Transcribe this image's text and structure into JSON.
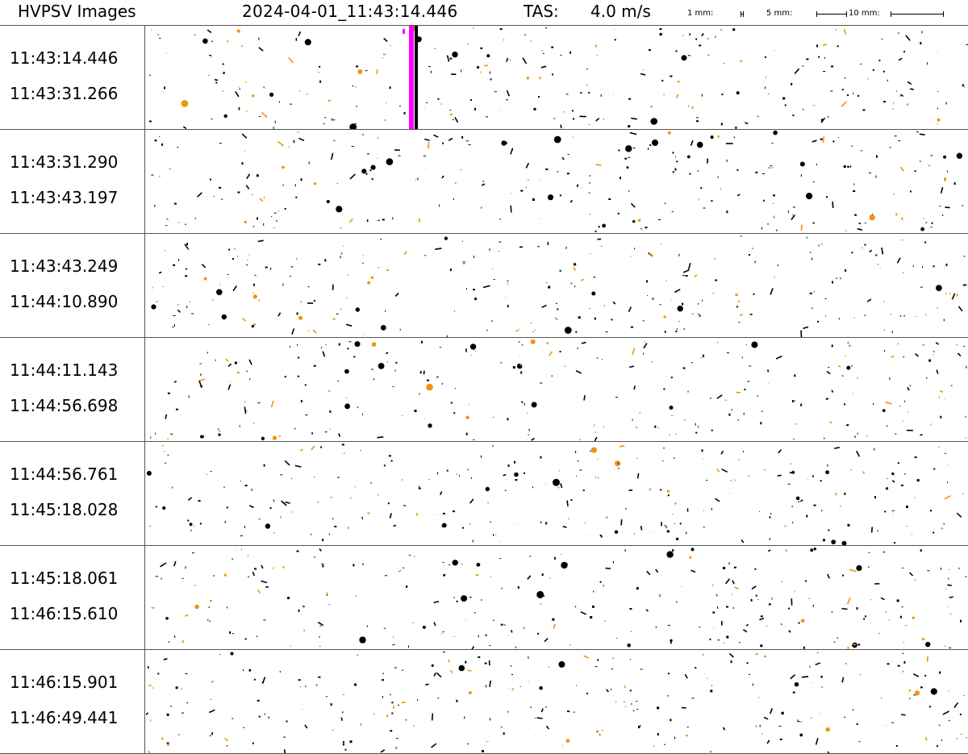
{
  "header": {
    "title": "HVPSV Images",
    "timestamp": "2024-04-01_11:43:14.446",
    "tas_label": "TAS:",
    "tas_value": "4.0 m/s",
    "scale": [
      {
        "label": "1 mm:"
      },
      {
        "label": "5 mm:"
      },
      {
        "label": "10 mm:"
      }
    ]
  },
  "strips": [
    {
      "start": "11:43:14.446",
      "end": "11:43:31.266",
      "marker": true
    },
    {
      "start": "11:43:31.290",
      "end": "11:43:43.197",
      "marker": false
    },
    {
      "start": "11:43:43.249",
      "end": "11:44:10.890",
      "marker": false
    },
    {
      "start": "11:44:11.143",
      "end": "11:44:56.698",
      "marker": false
    },
    {
      "start": "11:44:56.761",
      "end": "11:45:18.028",
      "marker": false
    },
    {
      "start": "11:45:18.061",
      "end": "11:46:15.610",
      "marker": false
    },
    {
      "start": "11:46:15.901",
      "end": "11:46:49.441",
      "marker": false
    }
  ],
  "colors": {
    "particle_dark": "#000000",
    "particle_accent": "#ee9410",
    "marker_magenta": "#ff00ff",
    "marker_black": "#000000",
    "grid": "#555555"
  }
}
